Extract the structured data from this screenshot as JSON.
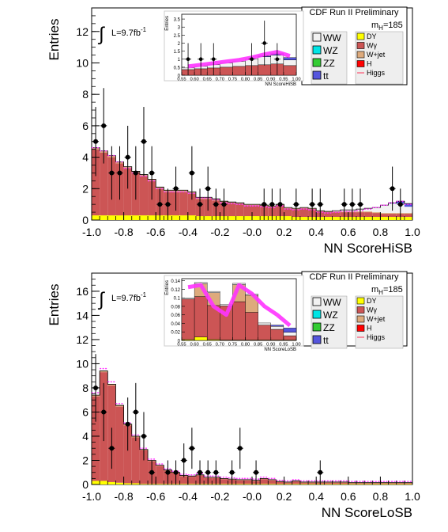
{
  "colors": {
    "wg": "#cc5555",
    "wjet": "#ddaa7c",
    "dy": "#ffff00",
    "ww": "#f2f2f2",
    "wz": "#00e5e5",
    "zz": "#33cc33",
    "tt": "#5555dd",
    "h": "#ff0000",
    "higgs_band": "#ff33ff",
    "higgs_line": "#ff3355"
  },
  "chart_data": [
    {
      "type": "bar",
      "xlabel": "NN ScoreHiSB",
      "ylabel": "Entries",
      "xlim": [
        -1.0,
        1.0
      ],
      "ylim": [
        0,
        13.5
      ],
      "x_ticks": [
        "-1.0",
        "-0.8",
        "-0.6",
        "-0.4",
        "-0.2",
        "-0.0",
        "0.2",
        "0.4",
        "0.6",
        "0.8",
        "1.0"
      ],
      "y_ticks": [
        "0",
        "2",
        "4",
        "6",
        "8",
        "10",
        "12"
      ],
      "lumi": "L=9.7fb",
      "lumi_sup": "-1",
      "legend_title": "CDF Run II Preliminary",
      "mass": "185",
      "mass_prefix": "m",
      "mass_sub": "H",
      "mass_eq": "=",
      "legend_left": [
        "WW",
        "WZ",
        "ZZ",
        "tt"
      ],
      "legend_right": [
        "DY",
        "Wγ",
        "W+jet",
        "H",
        "Higgs"
      ],
      "x_bin_centers": [
        -0.975,
        -0.925,
        -0.875,
        -0.825,
        -0.775,
        -0.725,
        -0.675,
        -0.625,
        -0.575,
        -0.525,
        -0.475,
        -0.425,
        -0.375,
        -0.325,
        -0.275,
        -0.225,
        -0.175,
        -0.125,
        -0.075,
        -0.025,
        0.025,
        0.075,
        0.125,
        0.175,
        0.225,
        0.275,
        0.325,
        0.375,
        0.425,
        0.475,
        0.525,
        0.575,
        0.625,
        0.675,
        0.725,
        0.775,
        0.825,
        0.875,
        0.925,
        0.975
      ],
      "series": [
        {
          "name": "DY",
          "values": [
            0.3,
            0.3,
            0.3,
            0.3,
            0.3,
            0.3,
            0.3,
            0.3,
            0.3,
            0.3,
            0.3,
            0.3,
            0.3,
            0.25,
            0.25,
            0.25,
            0.25,
            0.25,
            0.25,
            0.25,
            0.25,
            0.25,
            0.25,
            0.25,
            0.25,
            0.2,
            0.2,
            0.2,
            0.2,
            0.2,
            0.2,
            0.2,
            0.2,
            0.2,
            0.2,
            0.2,
            0.2,
            0.2,
            0.2,
            0.2
          ]
        },
        {
          "name": "Wγ",
          "values": [
            4.2,
            4.0,
            3.7,
            3.3,
            3.0,
            2.7,
            2.5,
            2.2,
            1.7,
            1.5,
            1.5,
            1.5,
            1.4,
            1.1,
            1.1,
            1.0,
            0.9,
            0.85,
            0.8,
            0.7,
            0.7,
            0.65,
            0.6,
            0.7,
            0.5,
            0.5,
            0.55,
            0.5,
            0.35,
            0.3,
            0.3,
            0.3,
            0.3,
            0.3,
            0.3,
            0.25,
            0.2,
            0.2,
            0.2,
            0.2
          ]
        },
        {
          "name": "W+jet",
          "values": [
            0.1,
            0.1,
            0.1,
            0.1,
            0.1,
            0.1,
            0.1,
            0.1,
            0.1,
            0.1,
            0.1,
            0.1,
            0.1,
            0.1,
            0.1,
            0.1,
            0.05,
            0.05,
            0.05,
            0.05,
            0.05,
            0.05,
            0.05,
            0.05,
            0.05,
            0.05,
            0.05,
            0.05,
            0.05,
            0.05,
            0.05,
            0.05,
            0.05,
            0.05,
            0.05,
            0.05,
            0.05,
            0.05,
            0.05,
            0.05
          ]
        },
        {
          "name": "WW",
          "values": [
            0,
            0,
            0,
            0,
            0,
            0,
            0,
            0,
            0,
            0,
            0,
            0,
            0,
            0,
            0,
            0,
            0,
            0,
            0,
            0,
            0,
            0,
            0,
            0,
            0,
            0,
            0,
            0,
            0,
            0,
            0.05,
            0.1,
            0.1,
            0.15,
            0.2,
            0.3,
            0.5,
            0.6,
            0.6,
            0.4
          ]
        },
        {
          "name": "tt",
          "values": [
            0,
            0,
            0,
            0,
            0,
            0,
            0,
            0,
            0,
            0,
            0,
            0,
            0,
            0,
            0,
            0,
            0,
            0,
            0,
            0,
            0,
            0,
            0,
            0,
            0,
            0,
            0,
            0,
            0,
            0,
            0,
            0,
            0,
            0,
            0,
            0,
            0,
            0.05,
            0.15,
            0.2
          ]
        }
      ],
      "higgs": [
        4.6,
        4.4,
        4.1,
        3.7,
        3.3,
        3.0,
        2.8,
        2.5,
        2.0,
        1.8,
        1.8,
        1.8,
        1.7,
        1.4,
        1.4,
        1.3,
        1.1,
        1.05,
        1.0,
        0.9,
        0.9,
        0.85,
        0.8,
        0.9,
        0.7,
        0.65,
        0.7,
        0.65,
        0.5,
        0.45,
        0.5,
        0.55,
        0.55,
        0.6,
        0.7,
        0.8,
        0.95,
        1.1,
        1.2,
        1.0
      ],
      "points": [
        {
          "x": -0.975,
          "y": 5,
          "err": 2.2
        },
        {
          "x": -0.925,
          "y": 6,
          "err": 2.4
        },
        {
          "x": -0.875,
          "y": 3,
          "err": 1.7
        },
        {
          "x": -0.825,
          "y": 3,
          "err": 1.7
        },
        {
          "x": -0.775,
          "y": 4,
          "err": 2.0
        },
        {
          "x": -0.725,
          "y": 3,
          "err": 1.7
        },
        {
          "x": -0.675,
          "y": 5,
          "err": 2.2
        },
        {
          "x": -0.625,
          "y": 3,
          "err": 1.7
        },
        {
          "x": -0.575,
          "y": 1,
          "err": 1.0
        },
        {
          "x": -0.525,
          "y": 1,
          "err": 1.0
        },
        {
          "x": -0.475,
          "y": 2,
          "err": 1.4
        },
        {
          "x": -0.375,
          "y": 3,
          "err": 1.7
        },
        {
          "x": -0.325,
          "y": 1,
          "err": 1.0
        },
        {
          "x": -0.275,
          "y": 2,
          "err": 1.4
        },
        {
          "x": -0.225,
          "y": 1,
          "err": 1.0
        },
        {
          "x": -0.175,
          "y": 1,
          "err": 1.0
        },
        {
          "x": 0.075,
          "y": 1,
          "err": 1.0
        },
        {
          "x": 0.125,
          "y": 1,
          "err": 1.0
        },
        {
          "x": 0.175,
          "y": 1,
          "err": 1.0
        },
        {
          "x": 0.275,
          "y": 1,
          "err": 1.0
        },
        {
          "x": 0.375,
          "y": 1,
          "err": 1.0
        },
        {
          "x": 0.425,
          "y": 1,
          "err": 1.0
        },
        {
          "x": 0.575,
          "y": 1,
          "err": 1.0
        },
        {
          "x": 0.625,
          "y": 1,
          "err": 1.0
        },
        {
          "x": 0.675,
          "y": 1,
          "err": 1.0
        },
        {
          "x": 0.875,
          "y": 2,
          "err": 1.4
        },
        {
          "x": 0.925,
          "y": 1,
          "err": 1.0
        }
      ],
      "inset": {
        "xlabel": "NN ScoreHiSB",
        "ylabel": "Entries",
        "xlim": [
          0.55,
          1.0
        ],
        "ylim": [
          0,
          3.8
        ],
        "x_ticks": [
          "0.55",
          "0.60",
          "0.65",
          "0.70",
          "0.75",
          "0.80",
          "0.85",
          "0.90",
          "0.95",
          "1.00"
        ],
        "y_ticks": [
          "0",
          "0.5",
          "1",
          "1.5",
          "2",
          "2.5",
          "3",
          "3.5"
        ],
        "x_bin_centers": [
          0.575,
          0.625,
          0.675,
          0.725,
          0.775,
          0.825,
          0.875,
          0.925,
          0.975
        ],
        "series": [
          {
            "name": "Wγ",
            "values": [
              0.35,
              0.4,
              0.45,
              0.5,
              0.55,
              0.6,
              0.65,
              0.7,
              0.6
            ]
          },
          {
            "name": "WW",
            "values": [
              0.1,
              0.15,
              0.2,
              0.25,
              0.3,
              0.4,
              0.5,
              0.55,
              0.35
            ]
          },
          {
            "name": "tt",
            "values": [
              0,
              0,
              0,
              0,
              0,
              0,
              0.05,
              0.1,
              0.15
            ]
          }
        ],
        "higgs": [
          0.55,
          0.65,
          0.75,
          0.85,
          0.95,
          1.1,
          1.3,
          1.45,
          1.2
        ],
        "points": [
          {
            "x": 0.575,
            "y": 1,
            "err": 1.0
          },
          {
            "x": 0.625,
            "y": 1,
            "err": 1.0
          },
          {
            "x": 0.675,
            "y": 1,
            "err": 1.0
          },
          {
            "x": 0.825,
            "y": 1,
            "err": 1.0
          },
          {
            "x": 0.875,
            "y": 2,
            "err": 1.4
          },
          {
            "x": 0.925,
            "y": 1,
            "err": 1.0
          }
        ]
      }
    },
    {
      "type": "bar",
      "xlabel": "NN ScoreLoSB",
      "ylabel": "Entries",
      "xlim": [
        -1.0,
        1.0
      ],
      "ylim": [
        0,
        17.5
      ],
      "x_ticks": [
        "-1.0",
        "-0.8",
        "-0.6",
        "-0.4",
        "-0.2",
        "-0.0",
        "0.2",
        "0.4",
        "0.6",
        "0.8",
        "1.0"
      ],
      "y_ticks": [
        "0",
        "2",
        "4",
        "6",
        "8",
        "10",
        "12",
        "14",
        "16"
      ],
      "lumi": "L=9.7fb",
      "lumi_sup": "-1",
      "legend_title": "CDF Run II Preliminary",
      "mass": "185",
      "mass_prefix": "m",
      "mass_sub": "H",
      "mass_eq": "=",
      "legend_left": [
        "WW",
        "WZ",
        "ZZ",
        "tt"
      ],
      "legend_right": [
        "DY",
        "Wγ",
        "W+jet",
        "H",
        "Higgs"
      ],
      "x_bin_centers": [
        -0.975,
        -0.925,
        -0.875,
        -0.825,
        -0.775,
        -0.725,
        -0.675,
        -0.625,
        -0.575,
        -0.525,
        -0.475,
        -0.425,
        -0.375,
        -0.325,
        -0.275,
        -0.225,
        -0.175,
        -0.125,
        -0.075,
        -0.025,
        0.025,
        0.075,
        0.125,
        0.175,
        0.225,
        0.275,
        0.325,
        0.375,
        0.425,
        0.475,
        0.525,
        0.575,
        0.625,
        0.675,
        0.725,
        0.775,
        0.825,
        0.875,
        0.925,
        0.975
      ],
      "series": [
        {
          "name": "DY",
          "values": [
            0.3,
            0.3,
            0.2,
            0.15,
            0.1,
            0.1,
            0.05,
            0.05,
            0.05,
            0.05,
            0.05,
            0.05,
            0.05,
            0.05,
            0.05,
            0.05,
            0.05,
            0.05,
            0.05,
            0.05,
            0.05,
            0.05,
            0.05,
            0.05,
            0.05,
            0.05,
            0.05,
            0.05,
            0.05,
            0.05,
            0.05,
            0.05,
            0.05,
            0.05,
            0.05,
            0.05,
            0.05,
            0.05,
            0.05,
            0.05
          ]
        },
        {
          "name": "Wγ",
          "values": [
            7.0,
            9.0,
            8.0,
            6.3,
            4.8,
            3.8,
            2.8,
            1.9,
            1.5,
            1.1,
            0.9,
            0.65,
            0.6,
            0.7,
            0.5,
            0.5,
            0.4,
            0.35,
            0.3,
            0.3,
            0.25,
            0.4,
            0.3,
            0.15,
            0.1,
            0.2,
            0.1,
            0.1,
            0.1,
            0.1,
            0.1,
            0.1,
            0.05,
            0.05,
            0.05,
            0.05,
            0.05,
            0.05,
            0.05,
            0.05
          ]
        },
        {
          "name": "W+jet",
          "values": [
            0.1,
            0.1,
            0.1,
            0.1,
            0.1,
            0.1,
            0.05,
            0.05,
            0.05,
            0.05,
            0.05,
            0.05,
            0.05,
            0.05,
            0.05,
            0.05,
            0.05,
            0.05,
            0.05,
            0.05,
            0.05,
            0.05,
            0.05,
            0.05,
            0.05,
            0.05,
            0.05,
            0.05,
            0.05,
            0.05,
            0.05,
            0.05,
            0.05,
            0.05,
            0.05,
            0.05,
            0.05,
            0.05,
            0.05,
            0.05
          ]
        }
      ],
      "higgs": [
        7.6,
        9.6,
        8.5,
        6.7,
        5.1,
        4.1,
        3.0,
        2.1,
        1.7,
        1.3,
        1.1,
        0.85,
        0.8,
        0.9,
        0.7,
        0.7,
        0.6,
        0.55,
        0.5,
        0.5,
        0.45,
        0.6,
        0.5,
        0.35,
        0.3,
        0.4,
        0.3,
        0.3,
        0.3,
        0.3,
        0.3,
        0.3,
        0.25,
        0.25,
        0.25,
        0.25,
        0.25,
        0.25,
        0.25,
        0.25
      ],
      "points": [
        {
          "x": -0.975,
          "y": 8,
          "err": 2.8
        },
        {
          "x": -0.925,
          "y": 6,
          "err": 2.4
        },
        {
          "x": -0.875,
          "y": 3,
          "err": 1.7
        },
        {
          "x": -0.775,
          "y": 5,
          "err": 2.2
        },
        {
          "x": -0.725,
          "y": 6,
          "err": 2.4
        },
        {
          "x": -0.675,
          "y": 4,
          "err": 2.0
        },
        {
          "x": -0.625,
          "y": 1,
          "err": 1.0
        },
        {
          "x": -0.525,
          "y": 1,
          "err": 1.0
        },
        {
          "x": -0.475,
          "y": 1,
          "err": 1.0
        },
        {
          "x": -0.425,
          "y": 2,
          "err": 1.4
        },
        {
          "x": -0.375,
          "y": 3,
          "err": 1.7
        },
        {
          "x": -0.325,
          "y": 1,
          "err": 1.0
        },
        {
          "x": -0.275,
          "y": 1,
          "err": 1.0
        },
        {
          "x": -0.225,
          "y": 1,
          "err": 1.0
        },
        {
          "x": -0.125,
          "y": 1,
          "err": 1.0
        },
        {
          "x": -0.075,
          "y": 3,
          "err": 1.7
        },
        {
          "x": 0.025,
          "y": 1,
          "err": 1.0
        },
        {
          "x": 0.425,
          "y": 1,
          "err": 1.0
        }
      ],
      "inset": {
        "xlabel": "NN ScoreLoSB",
        "ylabel": "Entries",
        "xlim": [
          0.55,
          1.0
        ],
        "ylim": [
          0,
          0.145
        ],
        "x_ticks": [
          "0.55",
          "0.60",
          "0.65",
          "0.70",
          "0.75",
          "0.80",
          "0.85",
          "0.90",
          "0.95",
          "1.00"
        ],
        "y_ticks": [
          "0",
          "0.02",
          "0.04",
          "0.06",
          "0.08",
          "0.1",
          "0.12",
          "0.14"
        ],
        "x_bin_centers": [
          0.575,
          0.625,
          0.675,
          0.725,
          0.775,
          0.825,
          0.875,
          0.925,
          0.975
        ],
        "series": [
          {
            "name": "DY",
            "values": [
              0.002,
              0.008,
              0.002,
              0.001,
              0.001,
              0.001,
              0.001,
              0.001,
              0.001
            ]
          },
          {
            "name": "Wγ",
            "values": [
              0.095,
              0.095,
              0.08,
              0.08,
              0.09,
              0.065,
              0.035,
              0.025,
              0.01
            ]
          },
          {
            "name": "W+jet",
            "values": [
              0.0,
              0.03,
              0.03,
              0.0,
              0.04,
              0.04,
              0.0,
              0.0,
              0.0
            ]
          },
          {
            "name": "WW",
            "values": [
              0.003,
              0.003,
              0.003,
              0.003,
              0.003,
              0.003,
              0.005,
              0.007,
              0.008
            ]
          },
          {
            "name": "tt",
            "values": [
              0,
              0,
              0,
              0,
              0,
              0,
              0,
              0.003,
              0.01
            ]
          }
        ],
        "higgs": [
          0.125,
          0.13,
          0.08,
          0.06,
          0.13,
          0.11,
          0.08,
          0.06,
          0.035
        ],
        "points": []
      }
    }
  ]
}
